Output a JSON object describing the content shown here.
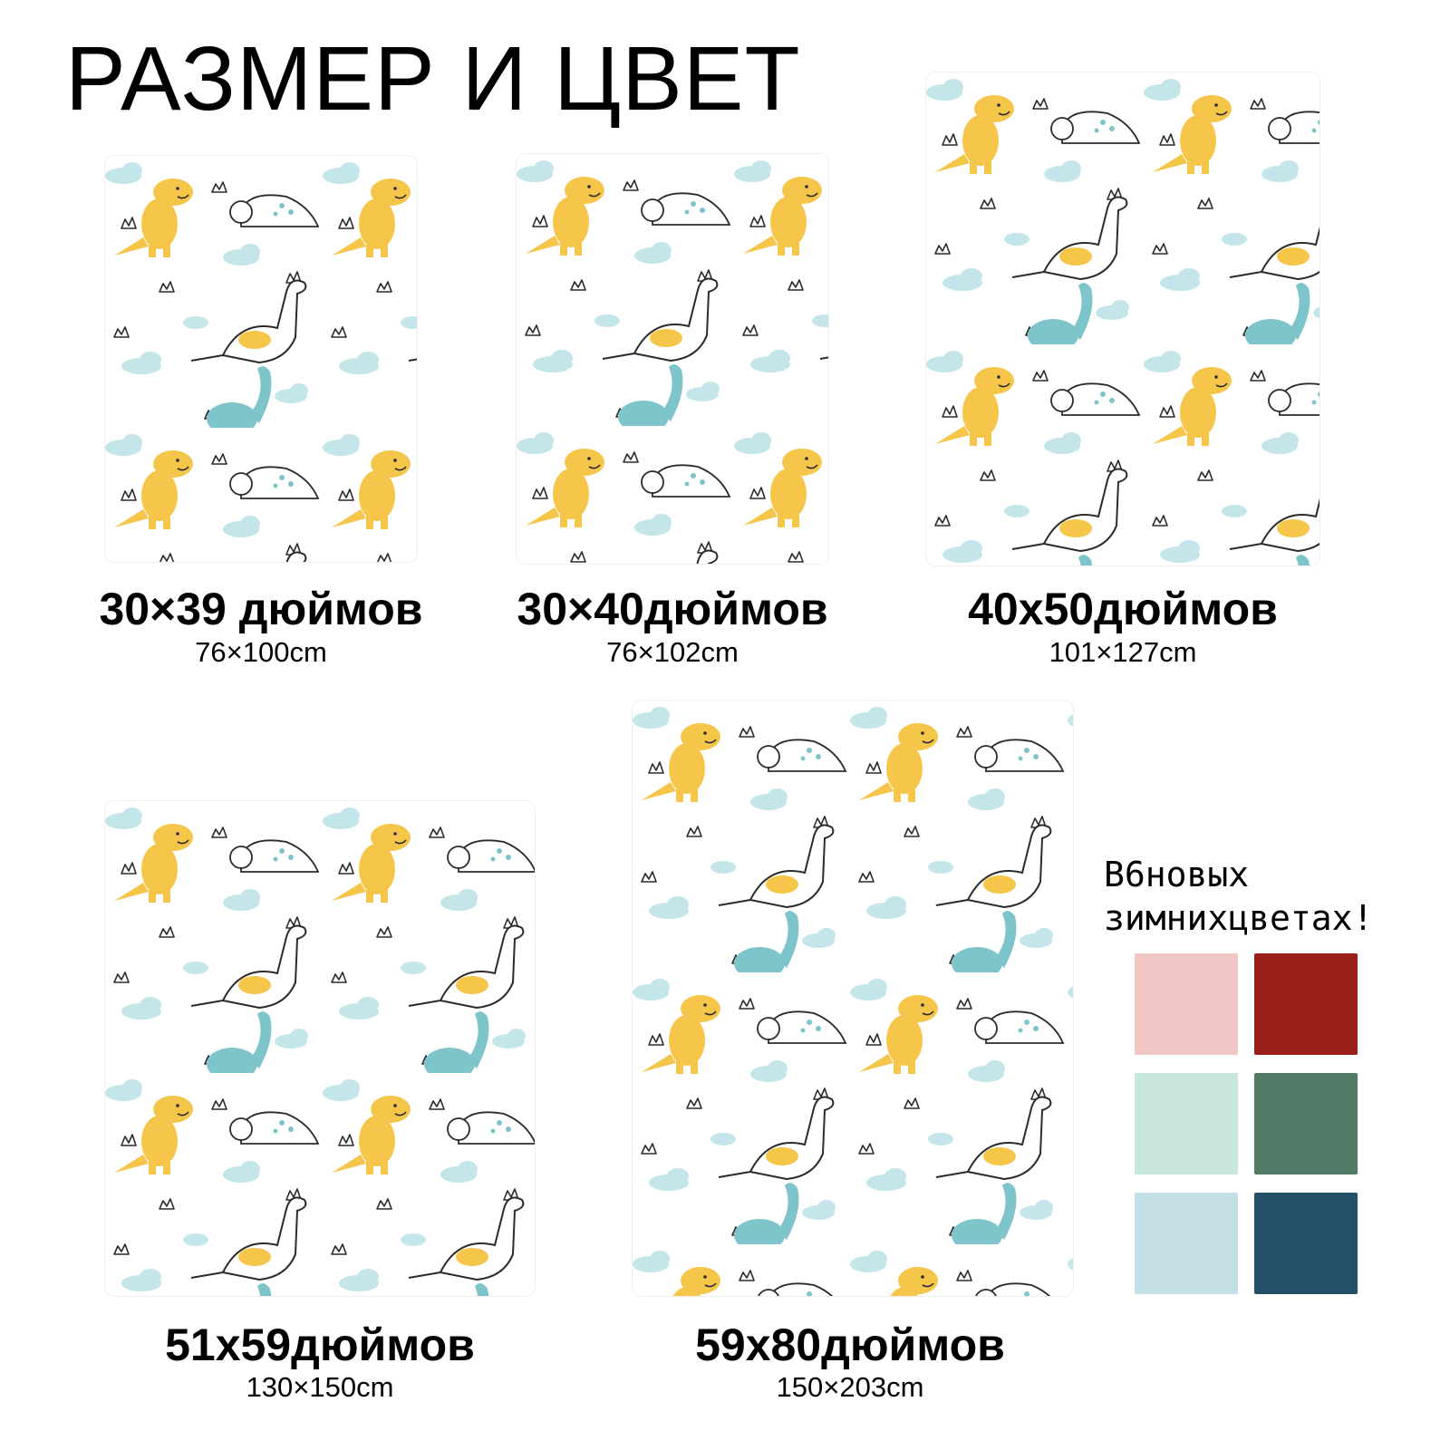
{
  "title": "РАЗМЕР И ЦВЕТ",
  "sizes": [
    {
      "inches": "30×39 дюймов",
      "cm": "76×100cm"
    },
    {
      "inches": "30×40дюймов",
      "cm": "76×102cm"
    },
    {
      "inches": "40x50дюймов",
      "cm": "101×127cm"
    },
    {
      "inches": "51x59дюймов",
      "cm": "130×150cm"
    },
    {
      "inches": "59x80дюймов",
      "cm": "150×203cm"
    }
  ],
  "colors_section": {
    "heading_line1": "В6новых",
    "heading_line2": "зимнихцветах!",
    "swatches": [
      "#efc6c4",
      "#9b201c",
      "#c8e7db",
      "#517b66",
      "#c3dfe6",
      "#264f69"
    ]
  },
  "pattern_colors": {
    "yellow": "#f6c64a",
    "teal": "#7ec5cb",
    "cloud": "#c4e6ea",
    "outline": "#2b2b2b"
  },
  "icons": [
    "yellow-trex-icon",
    "teal-dinosaur-icon",
    "outline-dinosaur-icon",
    "triceratops-icon",
    "cloud-icon",
    "grass-icon"
  ]
}
